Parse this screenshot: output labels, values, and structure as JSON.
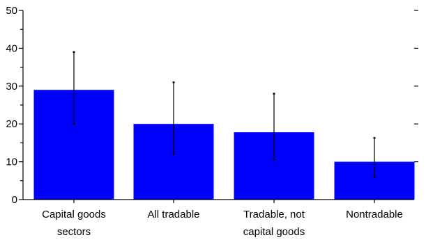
{
  "chart_data": {
    "type": "bar",
    "categories": [
      [
        "Capital goods",
        "sectors"
      ],
      [
        "All tradable"
      ],
      [
        "Tradable, not",
        "capital goods"
      ],
      [
        "Nontradable"
      ]
    ],
    "values": [
      29,
      20,
      17.8,
      10
    ],
    "error_low": [
      20,
      12,
      10.5,
      6
    ],
    "error_high": [
      39,
      31,
      28,
      16.3
    ],
    "ylim": [
      0,
      50
    ],
    "yticks": [
      0,
      10,
      20,
      30,
      40,
      50
    ],
    "ytick_labels": [
      "0",
      "10",
      "20",
      "30",
      "40",
      "50"
    ],
    "minor_ticks": true,
    "grid": false,
    "legend": false,
    "title": "",
    "xlabel": "",
    "ylabel": "",
    "bar_color": "#0000ff",
    "error_color": "#000000",
    "axis_color": "#000000"
  }
}
